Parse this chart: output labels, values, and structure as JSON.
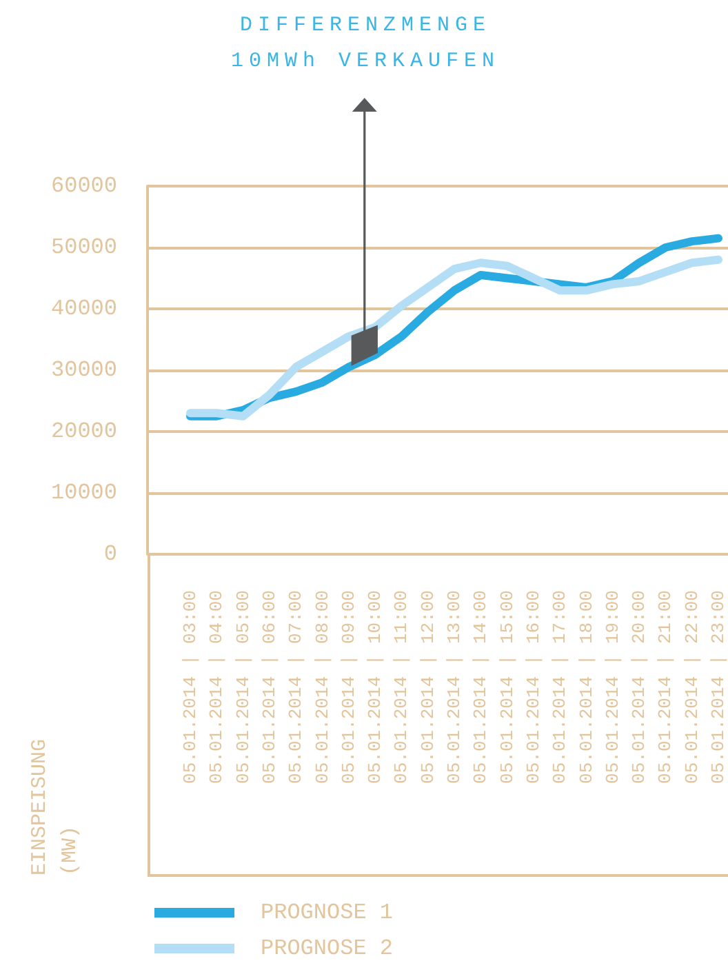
{
  "chart_data": {
    "type": "line",
    "annotations": [
      "DIFFERENZMENGE 10MWh VERKAUFEN"
    ],
    "ylabel": "EINSPEISUNG (MW)",
    "categories": [
      "05.01.2014 | 03:00",
      "05.01.2014 | 04:00",
      "05.01.2014 | 05:00",
      "05.01.2014 | 06:00",
      "05.01.2014 | 07:00",
      "05.01.2014 | 08:00",
      "05.01.2014 | 09:00",
      "05.01.2014 | 10:00",
      "05.01.2014 | 11:00",
      "05.01.2014 | 12:00",
      "05.01.2014 | 13:00",
      "05.01.2014 | 14:00",
      "05.01.2014 | 15:00",
      "05.01.2014 | 16:00",
      "05.01.2014 | 17:00",
      "05.01.2014 | 18:00",
      "05.01.2014 | 19:00",
      "05.01.2014 | 20:00",
      "05.01.2014 | 21:00",
      "05.01.2014 | 22:00",
      "05.01.2014 | 23:00"
    ],
    "series": [
      {
        "name": "PROGNOSE 1",
        "color": "#29abe2",
        "values": [
          22500,
          22500,
          23500,
          25500,
          26500,
          28000,
          30500,
          32500,
          35500,
          39500,
          43000,
          45500,
          45000,
          44500,
          44000,
          43500,
          44500,
          47500,
          50000,
          51000,
          51500
        ]
      },
      {
        "name": "PROGNOSE 2",
        "color": "#b3def5",
        "values": [
          23000,
          23000,
          22500,
          26000,
          30500,
          33000,
          35500,
          37000,
          40500,
          43500,
          46500,
          47500,
          47000,
          45000,
          43000,
          43000,
          44000,
          44500,
          46000,
          47500,
          48000
        ]
      }
    ],
    "ylim": [
      0,
      60000
    ],
    "yticks": [
      0,
      10000,
      20000,
      30000,
      40000,
      50000,
      60000
    ],
    "grid": "y",
    "legend": "bottom left",
    "marker": "none",
    "line_style": "solid"
  }
}
